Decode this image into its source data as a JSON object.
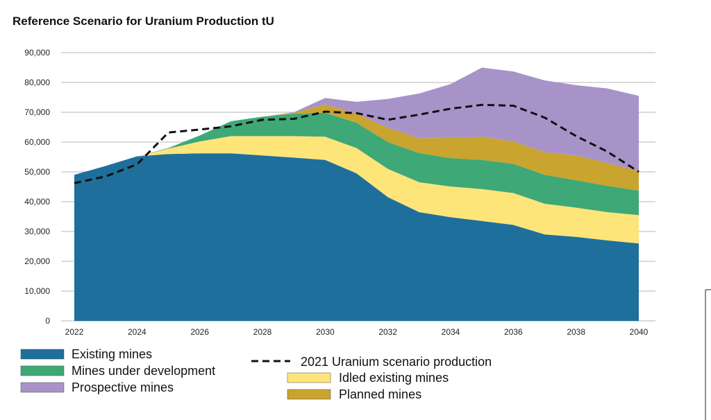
{
  "chart_data": {
    "type": "area",
    "title": "Reference Scenario for Uranium Production tU",
    "xlabel": "",
    "ylabel": "",
    "ylim": [
      0,
      90000
    ],
    "yticks": [
      0,
      10000,
      20000,
      30000,
      40000,
      50000,
      60000,
      70000,
      80000,
      90000
    ],
    "ytick_labels": [
      "0",
      "10,000",
      "20,000",
      "30,000",
      "40,000",
      "50,000",
      "60,000",
      "70,000",
      "80,000",
      "90,000"
    ],
    "x": [
      2022,
      2023,
      2024,
      2025,
      2026,
      2027,
      2028,
      2029,
      2030,
      2031,
      2032,
      2033,
      2034,
      2035,
      2036,
      2037,
      2038,
      2039,
      2040
    ],
    "xticks": [
      2022,
      2024,
      2026,
      2028,
      2030,
      2032,
      2034,
      2036,
      2038,
      2040
    ],
    "xtick_labels": [
      "2022",
      "2024",
      "2026",
      "2028",
      "2030",
      "2032",
      "2034",
      "2036",
      "2038",
      "2040"
    ],
    "grid": true,
    "stacked": true,
    "series": [
      {
        "name": "Existing mines",
        "color": "#1f6f9c",
        "values": [
          49000,
          52000,
          55200,
          56000,
          56200,
          56200,
          55500,
          54800,
          54000,
          49500,
          41500,
          36500,
          34800,
          33500,
          32200,
          29000,
          28200,
          27000,
          26000
        ]
      },
      {
        "name": "Idled existing mines",
        "color": "#fde57a",
        "values": [
          0,
          0,
          0,
          1800,
          4000,
          5800,
          6500,
          7200,
          7800,
          8500,
          9500,
          10000,
          10300,
          10700,
          10700,
          10300,
          9800,
          9500,
          9500
        ]
      },
      {
        "name": "Mines under development",
        "color": "#3ea876",
        "values": [
          0,
          0,
          0,
          200,
          2000,
          5000,
          6500,
          7500,
          8000,
          8500,
          9000,
          9800,
          9500,
          9800,
          9800,
          9700,
          9200,
          8800,
          8200
        ]
      },
      {
        "name": "Planned mines",
        "color": "#c9a42e",
        "values": [
          0,
          0,
          0,
          0,
          0,
          0,
          0,
          300,
          2800,
          3000,
          4800,
          5000,
          6800,
          7800,
          7500,
          7600,
          8300,
          7700,
          6500
        ]
      },
      {
        "name": "Prospective mines",
        "color": "#a893c9",
        "values": [
          0,
          0,
          0,
          0,
          0,
          0,
          0,
          200,
          2200,
          4000,
          9700,
          15000,
          18100,
          23200,
          23500,
          24100,
          23600,
          25000,
          25300
        ]
      }
    ],
    "line_series": {
      "name": "2021 Uranium scenario production",
      "color": "#111111",
      "style": "dashed",
      "values": [
        46200,
        48500,
        52500,
        63200,
        64200,
        65300,
        67500,
        67800,
        70200,
        69700,
        67500,
        69200,
        71200,
        72500,
        72200,
        68200,
        62000,
        56800,
        50000
      ]
    },
    "legend": {
      "left": [
        "Existing mines",
        "Mines under development",
        "Prospective mines"
      ],
      "right": [
        "2021 Uranium scenario production",
        "Idled existing mines",
        "Planned mines"
      ]
    }
  }
}
